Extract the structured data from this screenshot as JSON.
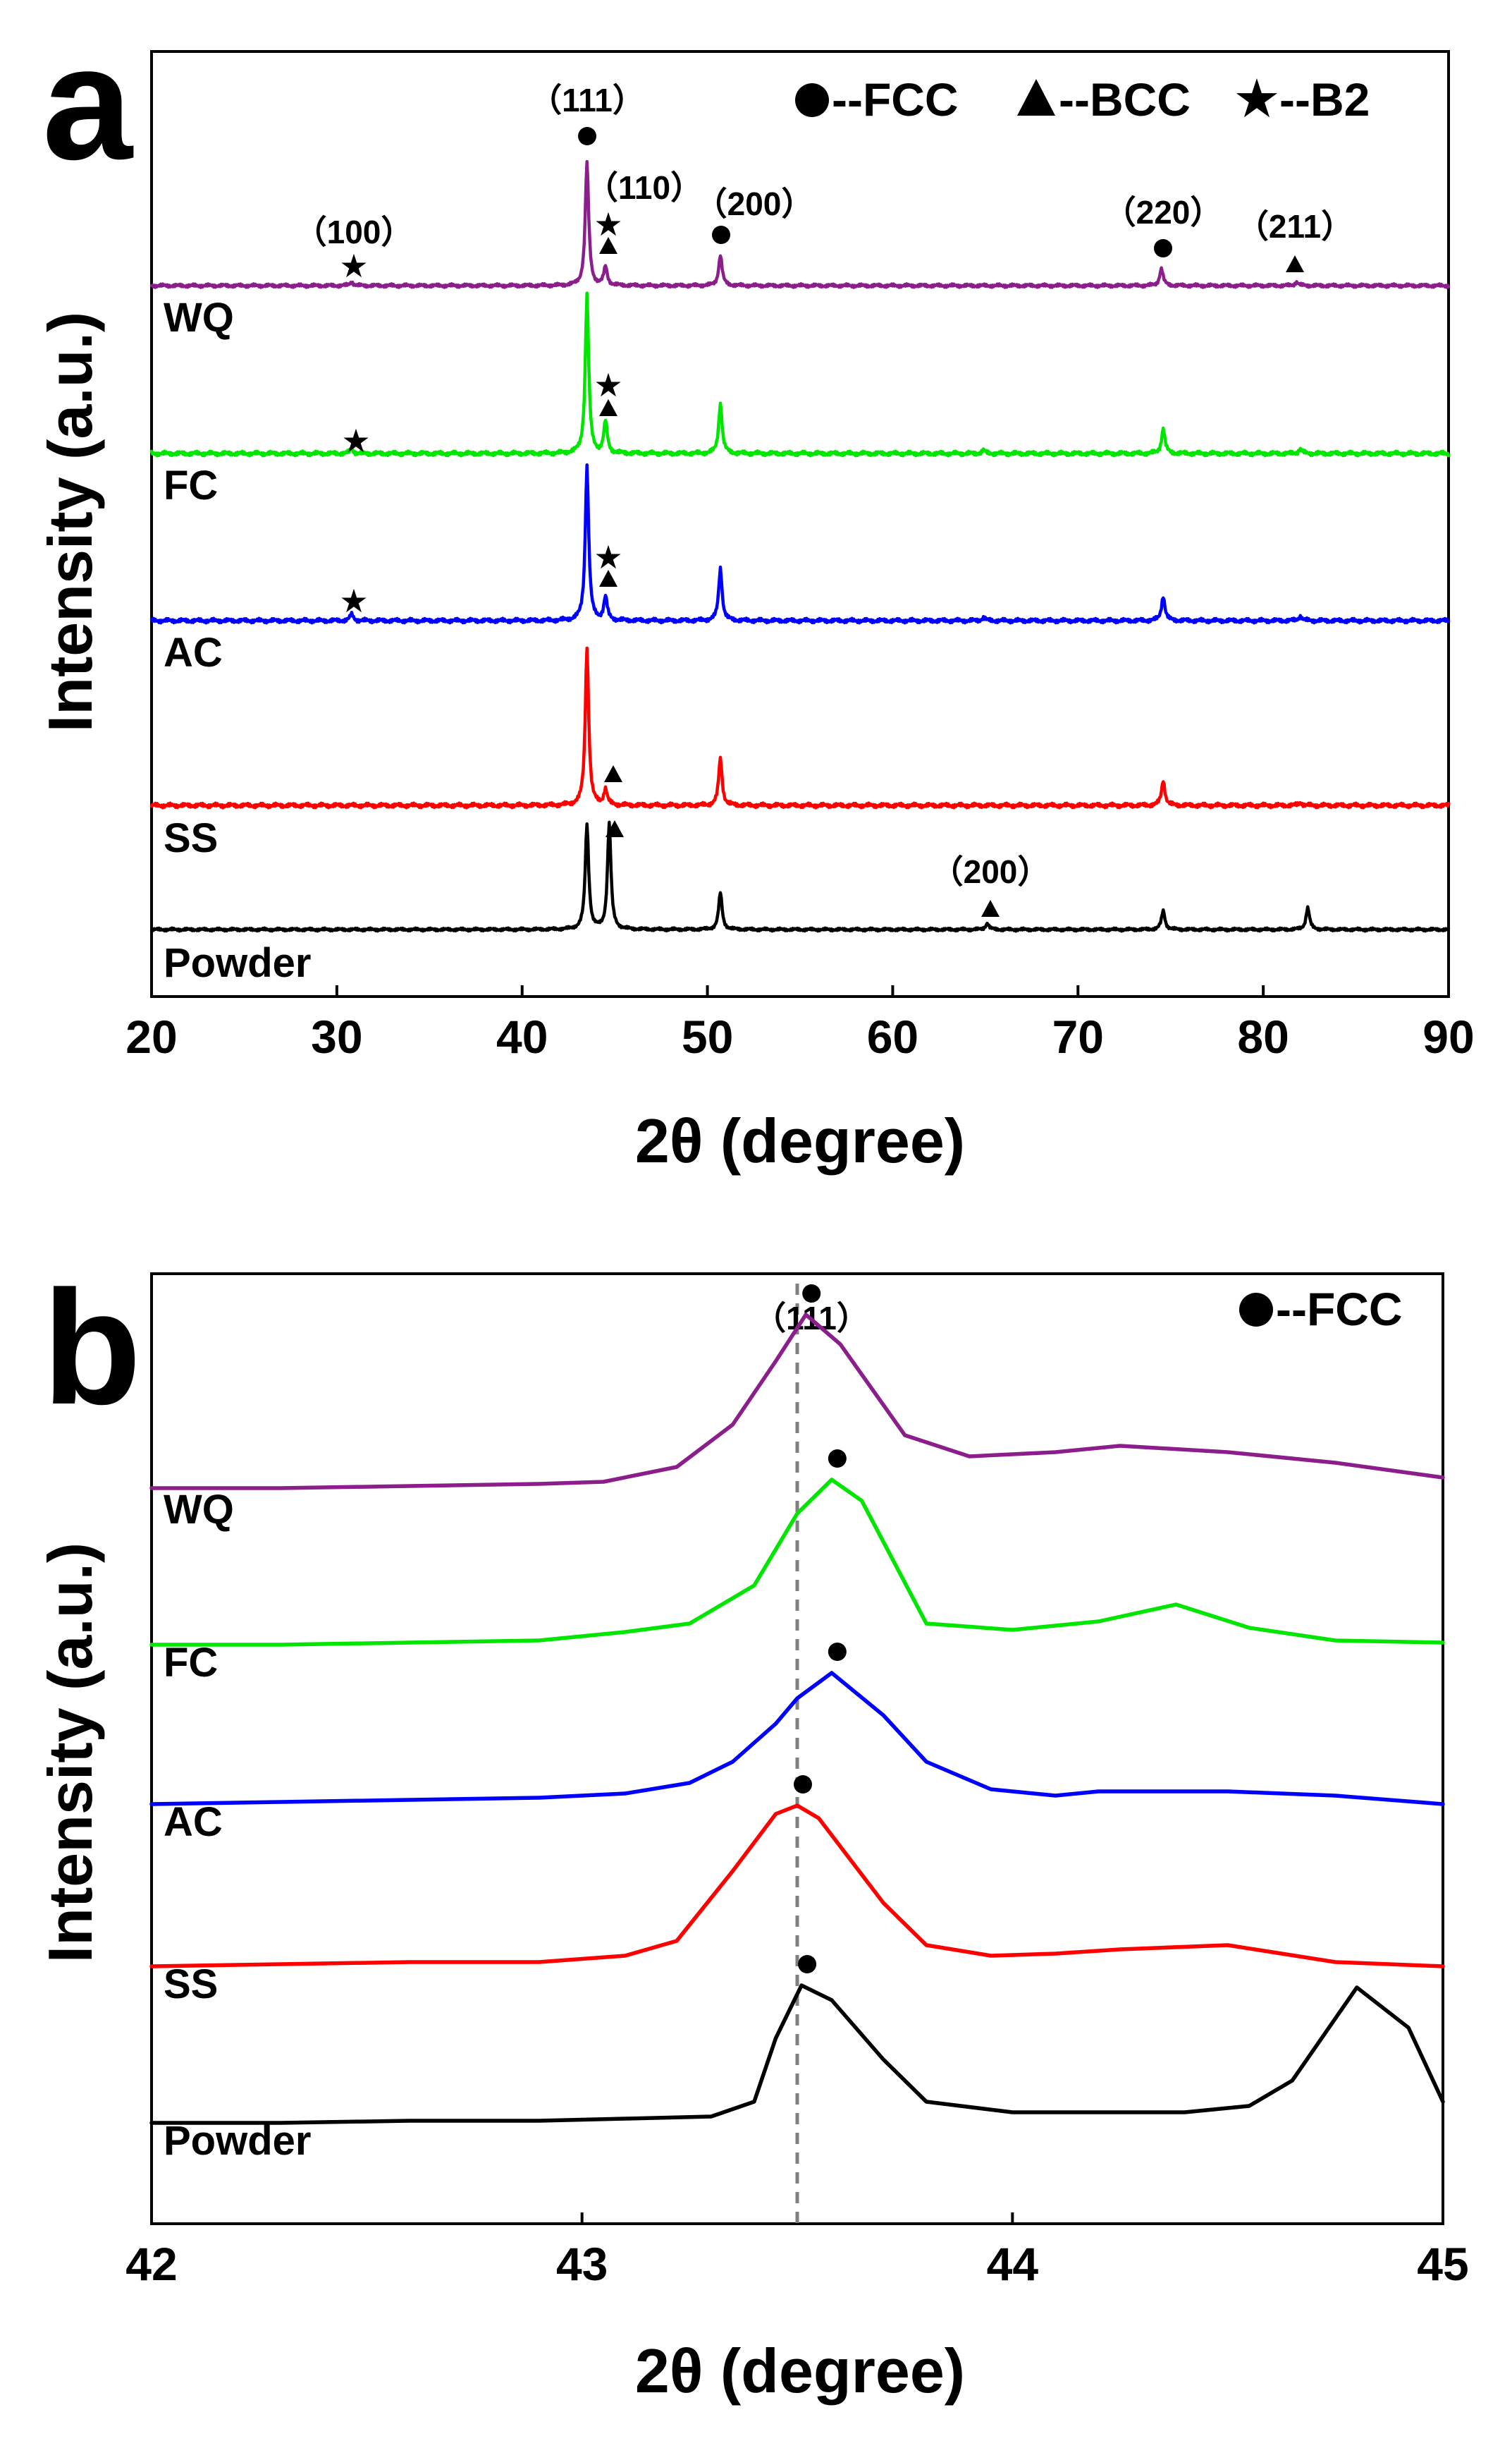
{
  "chart_data": [
    {
      "panel": "a",
      "type": "line",
      "xlabel": "2θ (degree)",
      "ylabel": "Intensity (a.u.)",
      "xlim": [
        20,
        90
      ],
      "xticks": [
        20,
        30,
        40,
        50,
        60,
        70,
        80,
        90
      ],
      "legend": {
        "position": "top-right",
        "items": [
          {
            "marker": "circle",
            "label": "--FCC"
          },
          {
            "marker": "triangle",
            "label": "--BCC"
          },
          {
            "marker": "star",
            "label": "--B2"
          }
        ]
      },
      "series": [
        {
          "name": "WQ",
          "label": "WQ",
          "color": "#8B1E8B",
          "peaks": [
            [
              30.8,
              0.03
            ],
            [
              43.5,
              1.0
            ],
            [
              44.5,
              0.15
            ],
            [
              50.7,
              0.25
            ],
            [
              74.5,
              0.14
            ],
            [
              81.8,
              0.03
            ]
          ]
        },
        {
          "name": "FC",
          "label": "FC",
          "color": "#00E600",
          "peaks": [
            [
              30.8,
              0.03
            ],
            [
              43.5,
              1.0
            ],
            [
              44.5,
              0.2
            ],
            [
              50.7,
              0.32
            ],
            [
              64.9,
              0.02
            ],
            [
              74.6,
              0.16
            ],
            [
              82.0,
              0.03
            ]
          ]
        },
        {
          "name": "AC",
          "label": "AC",
          "color": "#0000FF",
          "peaks": [
            [
              30.8,
              0.04
            ],
            [
              43.5,
              1.0
            ],
            [
              44.5,
              0.15
            ],
            [
              50.7,
              0.34
            ],
            [
              64.9,
              0.02
            ],
            [
              74.6,
              0.16
            ],
            [
              82.0,
              0.03
            ]
          ]
        },
        {
          "name": "SS",
          "label": "SS",
          "color": "#FF0000",
          "peaks": [
            [
              43.5,
              1.0
            ],
            [
              44.5,
              0.1
            ],
            [
              50.7,
              0.3
            ],
            [
              74.6,
              0.16
            ],
            [
              82.0,
              0.02
            ]
          ]
        },
        {
          "name": "Powder",
          "label": "Powder",
          "color": "#000000",
          "peaks": [
            [
              43.5,
              1.0
            ],
            [
              44.7,
              1.0
            ],
            [
              50.7,
              0.35
            ],
            [
              65.1,
              0.06
            ],
            [
              74.6,
              0.18
            ],
            [
              82.4,
              0.21
            ]
          ]
        }
      ],
      "annotations": [
        {
          "text": "（100）",
          "x": 30.8,
          "series": "WQ"
        },
        {
          "text": "（111）",
          "x": 43.5,
          "series": "WQ"
        },
        {
          "text": "（110）",
          "x": 44.5,
          "series": "WQ"
        },
        {
          "text": "（200）",
          "x": 50.7,
          "series": "WQ"
        },
        {
          "text": "（220）",
          "x": 74.5,
          "series": "WQ"
        },
        {
          "text": "（211）",
          "x": 81.8,
          "series": "WQ"
        },
        {
          "text": "（200）",
          "x": 65.1,
          "series": "Powder"
        }
      ]
    },
    {
      "panel": "b",
      "type": "line",
      "xlabel": "2θ (degree)",
      "ylabel": "Intensity (a.u.)",
      "xlim": [
        42,
        45
      ],
      "xticks": [
        42,
        43,
        44,
        45
      ],
      "reference_line_x": 43.5,
      "legend": {
        "position": "top-right",
        "items": [
          {
            "marker": "circle",
            "label": "--FCC"
          }
        ]
      },
      "annotations": [
        {
          "text": "（111）",
          "x": 43.5
        }
      ],
      "series": [
        {
          "name": "WQ",
          "label": "WQ",
          "color": "#8B1E8B",
          "peak_x": 43.52,
          "x": [
            42.0,
            42.3,
            42.6,
            42.9,
            43.05,
            43.22,
            43.35,
            43.45,
            43.52,
            43.6,
            43.75,
            43.9,
            44.1,
            44.25,
            44.5,
            44.75,
            45.0
          ],
          "y": [
            0.0,
            0.0,
            0.01,
            0.02,
            0.03,
            0.1,
            0.3,
            0.6,
            0.82,
            0.68,
            0.25,
            0.15,
            0.17,
            0.2,
            0.17,
            0.12,
            0.05
          ]
        },
        {
          "name": "FC",
          "label": "FC",
          "color": "#00E600",
          "peak_x": 43.58,
          "x": [
            42.0,
            42.3,
            42.6,
            42.9,
            43.1,
            43.25,
            43.4,
            43.5,
            43.58,
            43.65,
            43.8,
            44.0,
            44.2,
            44.38,
            44.55,
            44.75,
            45.0
          ],
          "y": [
            0.0,
            0.0,
            0.01,
            0.02,
            0.06,
            0.1,
            0.28,
            0.62,
            0.78,
            0.68,
            0.1,
            0.07,
            0.11,
            0.19,
            0.08,
            0.02,
            0.01
          ]
        },
        {
          "name": "AC",
          "label": "AC",
          "color": "#0000FF",
          "peak_x": 43.58,
          "x": [
            42.0,
            42.3,
            42.6,
            42.9,
            43.1,
            43.25,
            43.35,
            43.45,
            43.5,
            43.58,
            43.7,
            43.8,
            43.95,
            44.1,
            44.2,
            44.5,
            44.75,
            45.0
          ],
          "y": [
            0.0,
            0.01,
            0.02,
            0.03,
            0.05,
            0.1,
            0.2,
            0.38,
            0.5,
            0.62,
            0.42,
            0.2,
            0.07,
            0.04,
            0.06,
            0.06,
            0.04,
            0.0
          ]
        },
        {
          "name": "SS",
          "label": "SS",
          "color": "#FF0000",
          "peak_x": 43.5,
          "x": [
            42.0,
            42.3,
            42.6,
            42.9,
            43.1,
            43.22,
            43.35,
            43.45,
            43.5,
            43.55,
            43.7,
            43.8,
            43.95,
            44.1,
            44.25,
            44.5,
            44.75,
            45.0
          ],
          "y": [
            0.0,
            0.01,
            0.02,
            0.02,
            0.05,
            0.12,
            0.45,
            0.72,
            0.76,
            0.7,
            0.3,
            0.1,
            0.05,
            0.06,
            0.08,
            0.1,
            0.02,
            0.0
          ]
        },
        {
          "name": "Powder",
          "label": "Powder",
          "color": "#000000",
          "peak_x": 43.51,
          "x": [
            42.0,
            42.3,
            42.6,
            42.9,
            43.1,
            43.3,
            43.4,
            43.45,
            43.51,
            43.58,
            43.7,
            43.8,
            44.0,
            44.2,
            44.4,
            44.55,
            44.65,
            44.8,
            44.92,
            45.0
          ],
          "y": [
            0.0,
            0.0,
            0.01,
            0.01,
            0.02,
            0.03,
            0.1,
            0.4,
            0.65,
            0.58,
            0.3,
            0.1,
            0.05,
            0.05,
            0.05,
            0.08,
            0.2,
            0.64,
            0.45,
            0.1
          ]
        }
      ]
    }
  ]
}
